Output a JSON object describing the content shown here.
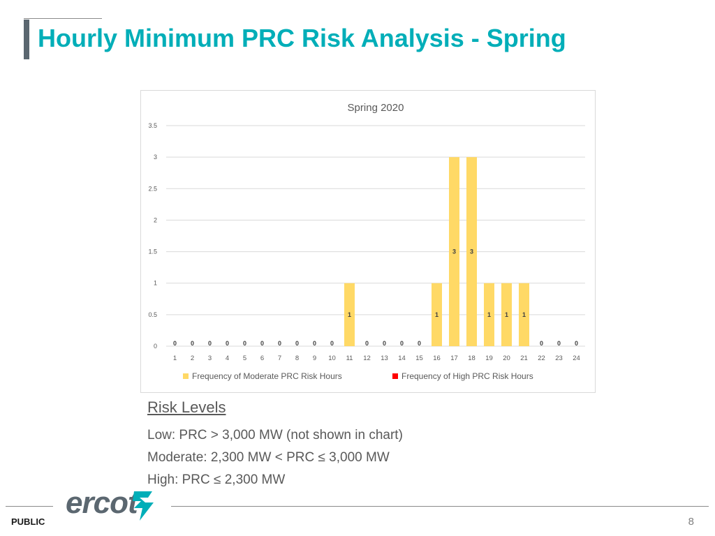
{
  "slide": {
    "title": "Hourly Minimum PRC Risk Analysis - Spring",
    "footer_label": "PUBLIC",
    "page_number": "8",
    "logo_text": "ercot",
    "accent_color": "#00aeb8",
    "bar_color": "#ffd966",
    "high_color": "#ff0000"
  },
  "risk": {
    "heading": "Risk Levels",
    "low": "Low: PRC > 3,000 MW (not shown in chart)",
    "moderate": "Moderate: 2,300 MW < PRC ≤ 3,000 MW",
    "high": "High: PRC ≤ 2,300 MW"
  },
  "chart_data": {
    "type": "bar",
    "title": "Spring 2020",
    "xlabel": "",
    "ylabel": "",
    "ylim": [
      0,
      3.5
    ],
    "yticks": [
      "0",
      "0.5",
      "1",
      "1.5",
      "2",
      "2.5",
      "3",
      "3.5"
    ],
    "categories": [
      "1",
      "2",
      "3",
      "4",
      "5",
      "6",
      "7",
      "8",
      "9",
      "10",
      "11",
      "12",
      "13",
      "14",
      "15",
      "16",
      "17",
      "18",
      "19",
      "20",
      "21",
      "22",
      "23",
      "24"
    ],
    "series": [
      {
        "name": "Frequency of Moderate PRC Risk Hours",
        "color": "#ffd966",
        "values": [
          0,
          0,
          0,
          0,
          0,
          0,
          0,
          0,
          0,
          0,
          1,
          0,
          0,
          0,
          0,
          1,
          3,
          3,
          1,
          1,
          1,
          0,
          0,
          0
        ]
      },
      {
        "name": "Frequency of High PRC Risk Hours",
        "color": "#ff0000",
        "values": [
          0,
          0,
          0,
          0,
          0,
          0,
          0,
          0,
          0,
          0,
          0,
          0,
          0,
          0,
          0,
          0,
          0,
          0,
          0,
          0,
          0,
          0,
          0,
          0
        ]
      }
    ],
    "grid": true,
    "legend": "bottom"
  }
}
